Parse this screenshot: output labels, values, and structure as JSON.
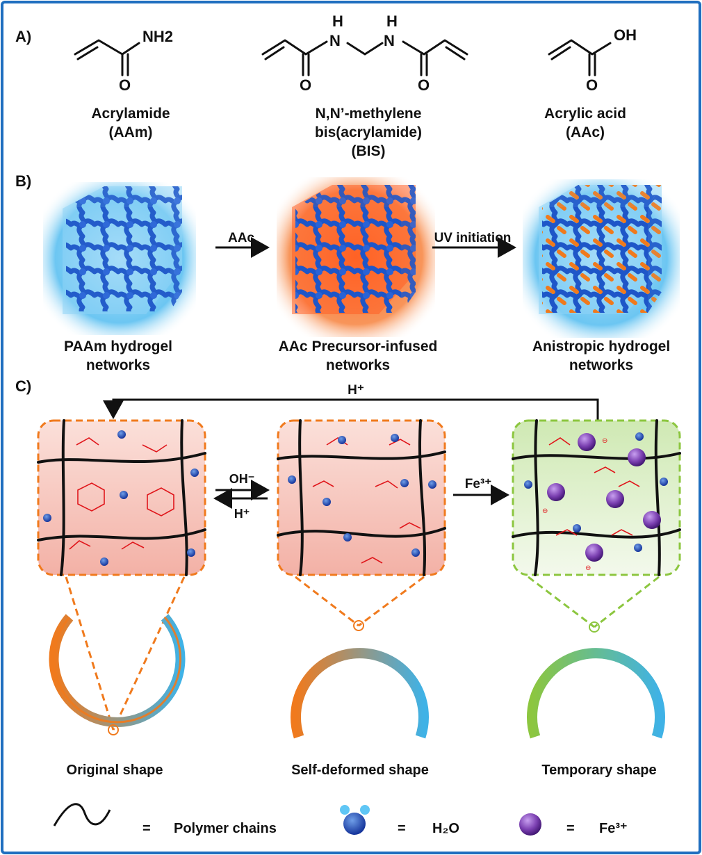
{
  "panels": {
    "a": "A)",
    "b": "B)",
    "c": "C)"
  },
  "panel_a": {
    "molecules": [
      {
        "name": "Acrylamide",
        "abbr": "(AAm)",
        "atoms": [
          "NH2",
          "O"
        ]
      },
      {
        "name_line1": "N,N’-methylene",
        "name_line2": "bis(acrylamide)",
        "abbr": "(BIS)",
        "atoms": [
          "H",
          "N",
          "H",
          "N",
          "O",
          "O"
        ]
      },
      {
        "name": "Acrylic acid",
        "abbr": "(AAc)",
        "atoms": [
          "OH",
          "O"
        ]
      }
    ]
  },
  "panel_b": {
    "arrow1": "AAc",
    "arrow2": "UV initiation",
    "captions": [
      {
        "line1": "PAAm hydrogel",
        "line2": "networks"
      },
      {
        "line1": "AAc Precursor-infused",
        "line2": "networks"
      },
      {
        "line1": "Anistropic hydrogel",
        "line2": "networks"
      }
    ]
  },
  "panel_c": {
    "top_arrow": "H⁺",
    "rev_top": "OH⁻",
    "rev_bottom": "H⁺",
    "fe_arrow": "Fe³⁺",
    "shapes": [
      "Original shape",
      "Self-deformed shape",
      "Temporary shape"
    ],
    "minus_sign": "⊖"
  },
  "legend": {
    "polymer": "Polymer chains",
    "water": "H₂O",
    "iron": "Fe³⁺",
    "eq": "="
  },
  "colors": {
    "frame": "#1f6fbf",
    "network": "#1e56c8",
    "blue_glow": "#4fb8ee",
    "orange": "#f07a1d",
    "pink_box": "#f5b7ad",
    "green_box": "#b6dc8f",
    "green_dash": "#8cc63f",
    "red_chem": "#e0161b",
    "fe_purple": "#7a3fb0"
  }
}
